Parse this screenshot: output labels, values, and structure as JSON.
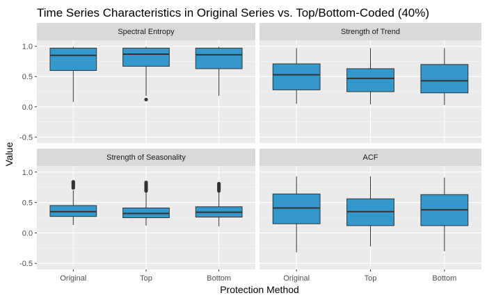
{
  "chart_data": {
    "type": "box",
    "title": "Time Series Characteristics in Original Series vs. Top/Bottom-Coded (40%)",
    "xlabel": "Protection Method",
    "ylabel": "Value",
    "categories": [
      "Original",
      "Top",
      "Bottom"
    ],
    "ylim": [
      -0.6,
      1.1
    ],
    "yticks": [
      -0.5,
      0.0,
      0.5,
      1.0
    ],
    "ytick_labels": [
      "-0.5",
      "0.0",
      "0.5",
      "1.0"
    ],
    "box_color": "#3399cc",
    "panel_background": "#ebebeb",
    "strip_background": "#d9d9d9",
    "grid": true,
    "panels": [
      {
        "name": "Spectral Entropy",
        "boxes": [
          {
            "category": "Original",
            "whisker_low": 0.08,
            "q1": 0.6,
            "median": 0.85,
            "q3": 0.97,
            "whisker_high": 0.99,
            "outliers": []
          },
          {
            "category": "Top",
            "whisker_low": 0.18,
            "q1": 0.67,
            "median": 0.87,
            "q3": 0.97,
            "whisker_high": 0.99,
            "outliers": [
              0.12
            ]
          },
          {
            "category": "Bottom",
            "whisker_low": 0.18,
            "q1": 0.63,
            "median": 0.86,
            "q3": 0.97,
            "whisker_high": 0.99,
            "outliers": []
          }
        ]
      },
      {
        "name": "Strength of Trend",
        "boxes": [
          {
            "category": "Original",
            "whisker_low": 0.05,
            "q1": 0.28,
            "median": 0.53,
            "q3": 0.71,
            "whisker_high": 0.97,
            "outliers": []
          },
          {
            "category": "Top",
            "whisker_low": 0.04,
            "q1": 0.25,
            "median": 0.47,
            "q3": 0.63,
            "whisker_high": 0.97,
            "outliers": []
          },
          {
            "category": "Bottom",
            "whisker_low": 0.03,
            "q1": 0.23,
            "median": 0.43,
            "q3": 0.7,
            "whisker_high": 0.97,
            "outliers": []
          }
        ]
      },
      {
        "name": "Strength of Seasonality",
        "boxes": [
          {
            "category": "Original",
            "whisker_low": 0.13,
            "q1": 0.27,
            "median": 0.35,
            "q3": 0.45,
            "whisker_high": 0.7,
            "outliers": [
              0.74,
              0.76,
              0.78,
              0.8,
              0.82,
              0.84
            ]
          },
          {
            "category": "Top",
            "whisker_low": 0.12,
            "q1": 0.25,
            "median": 0.32,
            "q3": 0.41,
            "whisker_high": 0.66,
            "outliers": [
              0.69,
              0.71,
              0.73,
              0.75,
              0.77,
              0.79,
              0.81,
              0.83
            ]
          },
          {
            "category": "Bottom",
            "whisker_low": 0.11,
            "q1": 0.26,
            "median": 0.34,
            "q3": 0.43,
            "whisker_high": 0.66,
            "outliers": [
              0.69,
              0.71,
              0.73,
              0.75,
              0.77,
              0.79,
              0.81
            ]
          }
        ]
      },
      {
        "name": "ACF",
        "boxes": [
          {
            "category": "Original",
            "whisker_low": -0.32,
            "q1": 0.15,
            "median": 0.41,
            "q3": 0.64,
            "whisker_high": 0.93,
            "outliers": []
          },
          {
            "category": "Top",
            "whisker_low": -0.22,
            "q1": 0.12,
            "median": 0.35,
            "q3": 0.56,
            "whisker_high": 0.93,
            "outliers": []
          },
          {
            "category": "Bottom",
            "whisker_low": -0.3,
            "q1": 0.12,
            "median": 0.38,
            "q3": 0.63,
            "whisker_high": 0.91,
            "outliers": []
          }
        ]
      }
    ]
  }
}
